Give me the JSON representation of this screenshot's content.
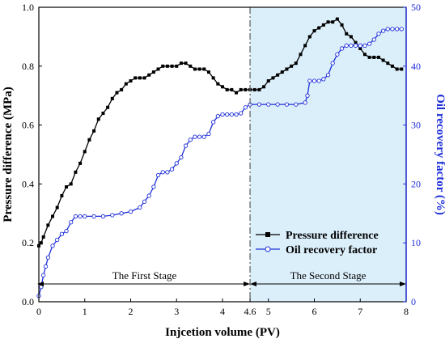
{
  "chart_data": {
    "type": "line",
    "xlabel": "Injcetion volume (PV)",
    "ylabel_left": "Pressure difference (MPa)",
    "ylabel_right": "Oil recovery factor (%)",
    "xlim": [
      0,
      8
    ],
    "ylim_left": [
      0,
      1.0
    ],
    "ylim_right": [
      0,
      50
    ],
    "x_ticks": [
      {
        "value": 0,
        "label": "0"
      },
      {
        "value": 1,
        "label": "1"
      },
      {
        "value": 2,
        "label": "2"
      },
      {
        "value": 3,
        "label": "3"
      },
      {
        "value": 4,
        "label": "4"
      },
      {
        "value": 4.6,
        "label": "4.6"
      },
      {
        "value": 5,
        "label": "5"
      },
      {
        "value": 6,
        "label": "6"
      },
      {
        "value": 7,
        "label": "7"
      },
      {
        "value": 8,
        "label": "8"
      }
    ],
    "y_ticks_left": [
      {
        "value": 0.0,
        "label": "0.0"
      },
      {
        "value": 0.2,
        "label": "0.2"
      },
      {
        "value": 0.4,
        "label": "0.4"
      },
      {
        "value": 0.6,
        "label": "0.6"
      },
      {
        "value": 0.8,
        "label": "0.8"
      },
      {
        "value": 1.0,
        "label": "1.0"
      }
    ],
    "y_ticks_right": [
      {
        "value": 0,
        "label": "0"
      },
      {
        "value": 10,
        "label": "10"
      },
      {
        "value": 20,
        "label": "20"
      },
      {
        "value": 30,
        "label": "30"
      },
      {
        "value": 40,
        "label": "40"
      },
      {
        "value": 50,
        "label": "50"
      }
    ],
    "stage_divider_x": 4.6,
    "stages": [
      {
        "label": "The First Stage",
        "x_start": 0,
        "x_end": 4.6
      },
      {
        "label": "The Second Stage",
        "x_start": 4.6,
        "x_end": 8
      }
    ],
    "shaded_region": {
      "x_start": 4.6,
      "x_end": 8,
      "color": "#dbeffb"
    },
    "legend_position": "lower-right",
    "series": [
      {
        "name": "Pressure difference",
        "axis": "left",
        "color": "#000000",
        "marker": "square-filled",
        "points": [
          [
            0,
            0.19
          ],
          [
            0.05,
            0.2
          ],
          [
            0.1,
            0.22
          ],
          [
            0.2,
            0.26
          ],
          [
            0.3,
            0.29
          ],
          [
            0.4,
            0.32
          ],
          [
            0.5,
            0.36
          ],
          [
            0.6,
            0.39
          ],
          [
            0.7,
            0.4
          ],
          [
            0.8,
            0.44
          ],
          [
            0.9,
            0.47
          ],
          [
            1.0,
            0.51
          ],
          [
            1.1,
            0.55
          ],
          [
            1.2,
            0.58
          ],
          [
            1.3,
            0.62
          ],
          [
            1.4,
            0.64
          ],
          [
            1.5,
            0.66
          ],
          [
            1.6,
            0.69
          ],
          [
            1.7,
            0.71
          ],
          [
            1.8,
            0.72
          ],
          [
            1.9,
            0.74
          ],
          [
            2.0,
            0.75
          ],
          [
            2.1,
            0.76
          ],
          [
            2.2,
            0.76
          ],
          [
            2.3,
            0.76
          ],
          [
            2.4,
            0.77
          ],
          [
            2.5,
            0.78
          ],
          [
            2.6,
            0.79
          ],
          [
            2.7,
            0.8
          ],
          [
            2.8,
            0.8
          ],
          [
            2.9,
            0.8
          ],
          [
            3.0,
            0.8
          ],
          [
            3.1,
            0.81
          ],
          [
            3.2,
            0.81
          ],
          [
            3.3,
            0.8
          ],
          [
            3.4,
            0.79
          ],
          [
            3.5,
            0.79
          ],
          [
            3.6,
            0.79
          ],
          [
            3.7,
            0.78
          ],
          [
            3.8,
            0.76
          ],
          [
            3.9,
            0.74
          ],
          [
            4.0,
            0.73
          ],
          [
            4.1,
            0.72
          ],
          [
            4.2,
            0.72
          ],
          [
            4.3,
            0.71
          ],
          [
            4.4,
            0.72
          ],
          [
            4.5,
            0.72
          ],
          [
            4.6,
            0.72
          ],
          [
            4.7,
            0.72
          ],
          [
            4.8,
            0.72
          ],
          [
            4.9,
            0.73
          ],
          [
            5.0,
            0.75
          ],
          [
            5.1,
            0.76
          ],
          [
            5.2,
            0.77
          ],
          [
            5.3,
            0.78
          ],
          [
            5.4,
            0.79
          ],
          [
            5.5,
            0.8
          ],
          [
            5.6,
            0.81
          ],
          [
            5.7,
            0.84
          ],
          [
            5.8,
            0.87
          ],
          [
            5.9,
            0.9
          ],
          [
            6.0,
            0.92
          ],
          [
            6.1,
            0.93
          ],
          [
            6.2,
            0.94
          ],
          [
            6.3,
            0.95
          ],
          [
            6.4,
            0.95
          ],
          [
            6.5,
            0.96
          ],
          [
            6.6,
            0.94
          ],
          [
            6.7,
            0.91
          ],
          [
            6.8,
            0.9
          ],
          [
            6.9,
            0.88
          ],
          [
            7.0,
            0.86
          ],
          [
            7.1,
            0.84
          ],
          [
            7.2,
            0.83
          ],
          [
            7.3,
            0.83
          ],
          [
            7.4,
            0.83
          ],
          [
            7.5,
            0.82
          ],
          [
            7.6,
            0.81
          ],
          [
            7.7,
            0.8
          ],
          [
            7.8,
            0.79
          ],
          [
            7.9,
            0.79
          ]
        ]
      },
      {
        "name": "Oil recovery factor",
        "axis": "right",
        "color": "#1f2fd8",
        "marker": "circle-open",
        "points": [
          [
            0,
            1.0
          ],
          [
            0.05,
            2.5
          ],
          [
            0.1,
            4.5
          ],
          [
            0.15,
            6.0
          ],
          [
            0.2,
            7.5
          ],
          [
            0.3,
            9.5
          ],
          [
            0.4,
            10.5
          ],
          [
            0.5,
            11.5
          ],
          [
            0.6,
            12.0
          ],
          [
            0.7,
            13.5
          ],
          [
            0.8,
            14.5
          ],
          [
            0.9,
            14.5
          ],
          [
            1.0,
            14.5
          ],
          [
            1.2,
            14.5
          ],
          [
            1.4,
            14.5
          ],
          [
            1.6,
            14.7
          ],
          [
            1.8,
            15.0
          ],
          [
            2.0,
            15.3
          ],
          [
            2.2,
            16.0
          ],
          [
            2.3,
            17.0
          ],
          [
            2.4,
            18.0
          ],
          [
            2.5,
            19.5
          ],
          [
            2.6,
            21.5
          ],
          [
            2.7,
            22.0
          ],
          [
            2.8,
            22.0
          ],
          [
            2.9,
            22.5
          ],
          [
            3.0,
            23.5
          ],
          [
            3.1,
            24.5
          ],
          [
            3.2,
            26.5
          ],
          [
            3.3,
            27.5
          ],
          [
            3.4,
            28.0
          ],
          [
            3.5,
            28.0
          ],
          [
            3.6,
            28.0
          ],
          [
            3.7,
            28.5
          ],
          [
            3.8,
            30.5
          ],
          [
            3.9,
            31.5
          ],
          [
            4.0,
            31.8
          ],
          [
            4.1,
            31.8
          ],
          [
            4.2,
            31.8
          ],
          [
            4.3,
            31.8
          ],
          [
            4.4,
            32.0
          ],
          [
            4.5,
            33.0
          ],
          [
            4.6,
            33.5
          ],
          [
            4.8,
            33.5
          ],
          [
            5.0,
            33.5
          ],
          [
            5.2,
            33.5
          ],
          [
            5.4,
            33.5
          ],
          [
            5.6,
            33.5
          ],
          [
            5.8,
            33.8
          ],
          [
            5.85,
            35.0
          ],
          [
            5.9,
            37.5
          ],
          [
            6.0,
            37.5
          ],
          [
            6.1,
            37.5
          ],
          [
            6.2,
            37.8
          ],
          [
            6.3,
            38.5
          ],
          [
            6.4,
            40.5
          ],
          [
            6.5,
            42.0
          ],
          [
            6.6,
            43.0
          ],
          [
            6.7,
            43.5
          ],
          [
            6.8,
            43.5
          ],
          [
            6.9,
            43.5
          ],
          [
            7.0,
            43.5
          ],
          [
            7.1,
            43.5
          ],
          [
            7.2,
            43.8
          ],
          [
            7.3,
            44.5
          ],
          [
            7.4,
            45.5
          ],
          [
            7.5,
            46.0
          ],
          [
            7.6,
            46.3
          ],
          [
            7.7,
            46.3
          ],
          [
            7.8,
            46.3
          ],
          [
            7.9,
            46.3
          ]
        ]
      }
    ]
  }
}
